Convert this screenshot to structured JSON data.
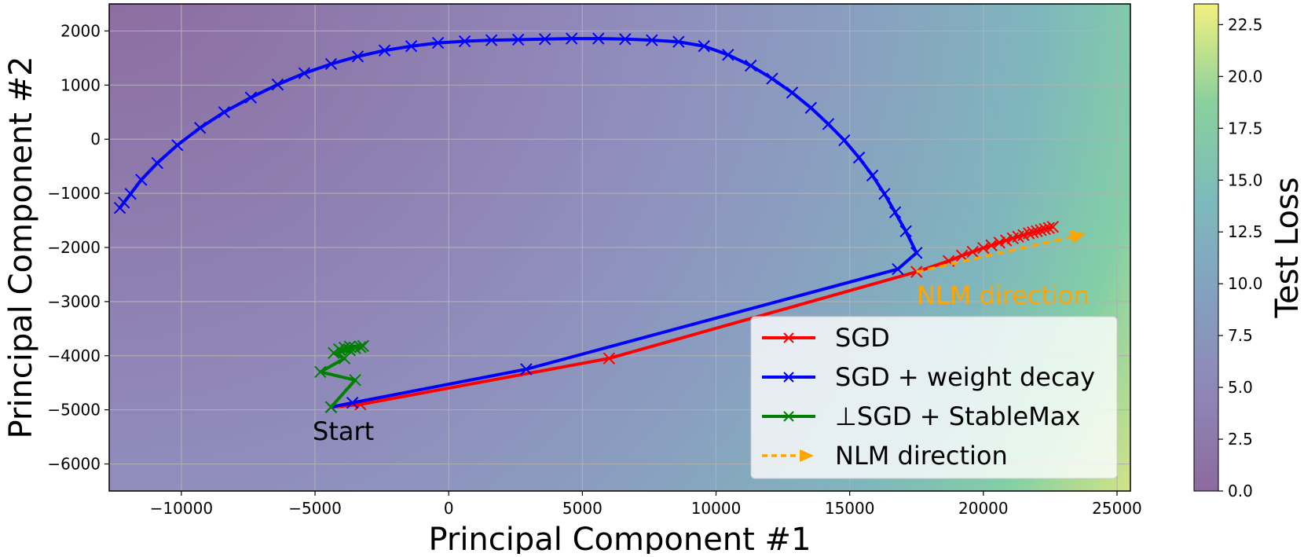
{
  "chart_data": {
    "type": "line",
    "title": "",
    "xlabel": "Principal Component #1",
    "ylabel": "Principal Component #2",
    "xlim": [
      -12700,
      25500
    ],
    "ylim": [
      -6500,
      2500
    ],
    "xticks": [
      -10000,
      -5000,
      0,
      5000,
      10000,
      15000,
      20000,
      25000
    ],
    "xtick_labels": [
      "−10000",
      "−5000",
      "0",
      "5000",
      "10000",
      "15000",
      "20000",
      "25000"
    ],
    "yticks": [
      2000,
      1000,
      0,
      -1000,
      -2000,
      -3000,
      -4000,
      -5000,
      -6000
    ],
    "ytick_labels": [
      "2000",
      "1000",
      "0",
      "−1000",
      "−2000",
      "−3000",
      "−4000",
      "−5000",
      "−6000"
    ],
    "grid": true,
    "legend_position": "lower right",
    "background": {
      "type": "contour",
      "colormap": "viridis",
      "alpha": 0.6,
      "colorbar_label": "Test Loss",
      "colorbar_range": [
        0,
        23.5
      ],
      "colorbar_ticks": [
        0.0,
        2.5,
        5.0,
        7.5,
        10.0,
        12.5,
        15.0,
        17.5,
        20.0,
        22.5
      ],
      "colorbar_tick_labels": [
        "0.0",
        "2.5",
        "5.0",
        "7.5",
        "10.0",
        "12.5",
        "15.0",
        "17.5",
        "20.0",
        "22.5"
      ]
    },
    "series": [
      {
        "name": "SGD",
        "color": "#ff0000",
        "marker": "x",
        "points": [
          [
            -4400,
            -4950
          ],
          [
            -3300,
            -4900
          ],
          [
            6000,
            -4050
          ],
          [
            17500,
            -2450
          ],
          [
            18700,
            -2250
          ],
          [
            19200,
            -2150
          ],
          [
            19600,
            -2080
          ],
          [
            20000,
            -2010
          ],
          [
            20300,
            -1960
          ],
          [
            20600,
            -1910
          ],
          [
            20850,
            -1870
          ],
          [
            21100,
            -1830
          ],
          [
            21300,
            -1800
          ],
          [
            21500,
            -1770
          ],
          [
            21700,
            -1740
          ],
          [
            21850,
            -1720
          ],
          [
            22000,
            -1700
          ],
          [
            22150,
            -1680
          ],
          [
            22300,
            -1660
          ],
          [
            22450,
            -1640
          ],
          [
            22600,
            -1620
          ]
        ]
      },
      {
        "name": "SGD + weight decay",
        "color": "#0000ff",
        "marker": "x",
        "points": [
          [
            -4400,
            -4950
          ],
          [
            -3600,
            -4870
          ],
          [
            2900,
            -4250
          ],
          [
            16800,
            -2400
          ],
          [
            17500,
            -2100
          ],
          [
            17100,
            -1700
          ],
          [
            16700,
            -1350
          ],
          [
            16300,
            -1010
          ],
          [
            15850,
            -670
          ],
          [
            15350,
            -340
          ],
          [
            14800,
            -20
          ],
          [
            14200,
            280
          ],
          [
            13550,
            580
          ],
          [
            12850,
            860
          ],
          [
            12100,
            1120
          ],
          [
            11300,
            1360
          ],
          [
            10450,
            1560
          ],
          [
            9550,
            1720
          ],
          [
            8600,
            1800
          ],
          [
            7600,
            1830
          ],
          [
            6600,
            1850
          ],
          [
            5600,
            1860
          ],
          [
            4600,
            1860
          ],
          [
            3600,
            1850
          ],
          [
            2600,
            1840
          ],
          [
            1600,
            1830
          ],
          [
            600,
            1810
          ],
          [
            -400,
            1780
          ],
          [
            -1400,
            1720
          ],
          [
            -2400,
            1640
          ],
          [
            -3400,
            1530
          ],
          [
            -4400,
            1390
          ],
          [
            -5400,
            1220
          ],
          [
            -6400,
            1010
          ],
          [
            -7400,
            770
          ],
          [
            -8400,
            500
          ],
          [
            -9300,
            210
          ],
          [
            -10150,
            -110
          ],
          [
            -10900,
            -440
          ],
          [
            -11500,
            -750
          ],
          [
            -11900,
            -1010
          ],
          [
            -12150,
            -1170
          ],
          [
            -12300,
            -1270
          ]
        ]
      },
      {
        "name": "⊥SGD + StableMax",
        "color": "#008000",
        "marker": "x",
        "points": [
          [
            -4400,
            -4950
          ],
          [
            -3500,
            -4450
          ],
          [
            -4800,
            -4300
          ],
          [
            -3900,
            -4050
          ],
          [
            -4300,
            -3950
          ],
          [
            -3700,
            -3900
          ],
          [
            -4100,
            -3880
          ],
          [
            -3500,
            -3860
          ],
          [
            -3900,
            -3850
          ],
          [
            -3300,
            -3840
          ],
          [
            -3700,
            -3830
          ],
          [
            -3200,
            -3820
          ]
        ]
      }
    ],
    "arrow": {
      "name": "NLM direction",
      "color": "#ffa500",
      "from": [
        17500,
        -2450
      ],
      "to": [
        23800,
        -1750
      ],
      "label": "NLM direction"
    },
    "annotations": [
      {
        "text": "Start",
        "x": -5000,
        "y": -5450
      },
      {
        "text": "NLM direction",
        "x": 17800,
        "y": -2850
      }
    ],
    "legend": [
      {
        "label": "SGD",
        "color": "#ff0000"
      },
      {
        "label": "SGD + weight decay",
        "color": "#0000ff"
      },
      {
        "label": "⊥SGD + StableMax",
        "color": "#008000"
      },
      {
        "label": "NLM direction",
        "color": "#ffa500"
      }
    ]
  }
}
